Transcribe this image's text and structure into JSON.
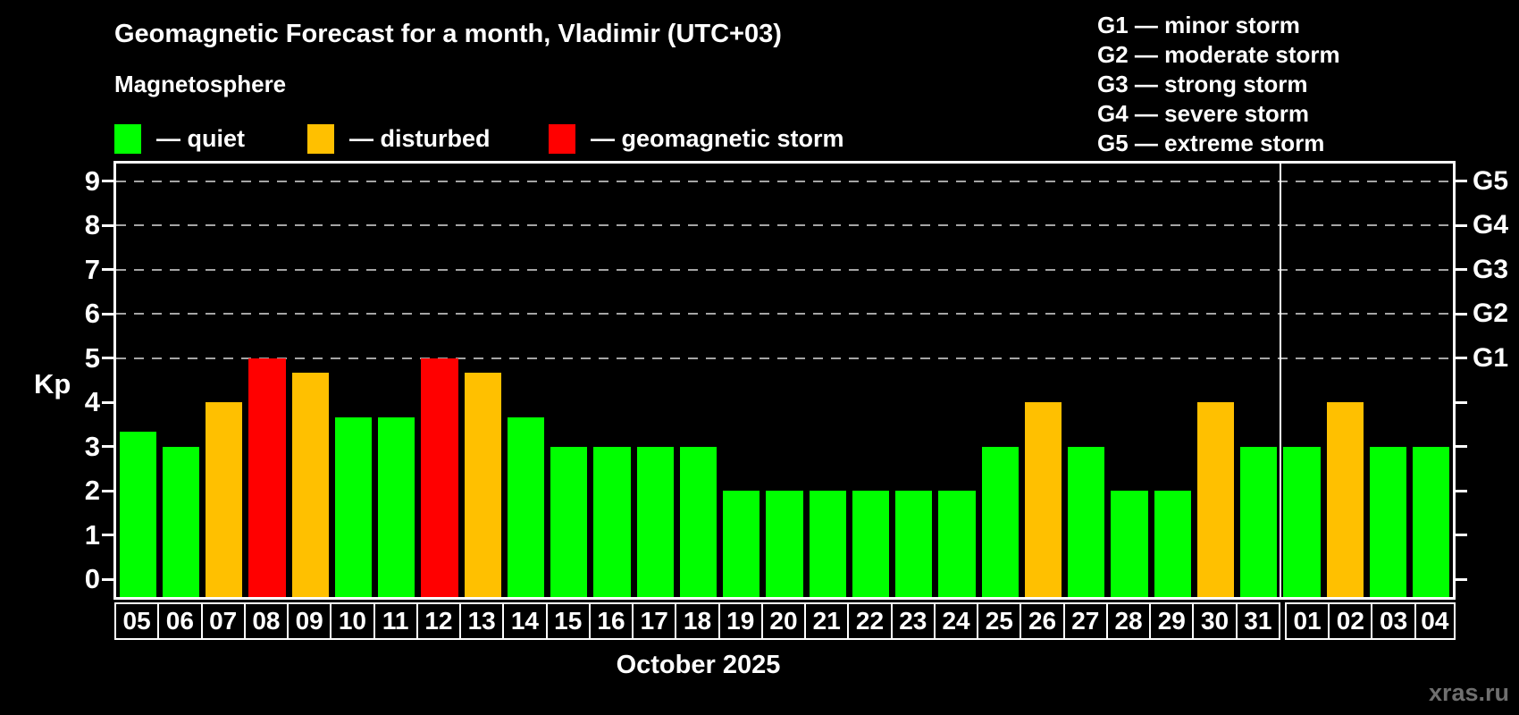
{
  "header": {
    "title": "Geomagnetic Forecast for a month, Vladimir (UTC+03)",
    "subtitle": "Magnetosphere",
    "legend": [
      {
        "label": "— quiet",
        "status": "quiet"
      },
      {
        "label": "— disturbed",
        "status": "disturbed"
      },
      {
        "label": "— geomagnetic storm",
        "status": "storm"
      }
    ],
    "g_legend": [
      "G1 — minor storm",
      "G2 — moderate storm",
      "G3 — strong storm",
      "G4 — severe storm",
      "G5 — extreme storm"
    ]
  },
  "colors": {
    "quiet": "#00ff00",
    "disturbed": "#ffc000",
    "storm": "#ff0000",
    "grid": "#a5a5a5",
    "axis": "#ffffff",
    "watermark": "#6f6f6f",
    "background": "#000000"
  },
  "chart_data": {
    "type": "bar",
    "title": "Geomagnetic Forecast for a month, Vladimir (UTC+03)",
    "ylabel": "Kp",
    "xlabel": "October 2025",
    "ylim": [
      0,
      9
    ],
    "yticks": [
      0,
      1,
      2,
      3,
      4,
      5,
      6,
      7,
      8,
      9
    ],
    "grid_levels": [
      5,
      6,
      7,
      8,
      9
    ],
    "right_axis_labels": [
      {
        "label": "G1",
        "kp": 5
      },
      {
        "label": "G2",
        "kp": 6
      },
      {
        "label": "G3",
        "kp": 7
      },
      {
        "label": "G4",
        "kp": 8
      },
      {
        "label": "G5",
        "kp": 9
      }
    ],
    "legend_position": "top",
    "grid": "dashed horizontal at storm levels only",
    "month_split_index": 27,
    "days": [
      {
        "label": "05",
        "value": 3.33,
        "status": "quiet"
      },
      {
        "label": "06",
        "value": 3.0,
        "status": "quiet"
      },
      {
        "label": "07",
        "value": 4.0,
        "status": "disturbed"
      },
      {
        "label": "08",
        "value": 5.0,
        "status": "storm"
      },
      {
        "label": "09",
        "value": 4.67,
        "status": "disturbed"
      },
      {
        "label": "10",
        "value": 3.67,
        "status": "quiet"
      },
      {
        "label": "11",
        "value": 3.67,
        "status": "quiet"
      },
      {
        "label": "12",
        "value": 5.0,
        "status": "storm"
      },
      {
        "label": "13",
        "value": 4.67,
        "status": "disturbed"
      },
      {
        "label": "14",
        "value": 3.67,
        "status": "quiet"
      },
      {
        "label": "15",
        "value": 3.0,
        "status": "quiet"
      },
      {
        "label": "16",
        "value": 3.0,
        "status": "quiet"
      },
      {
        "label": "17",
        "value": 3.0,
        "status": "quiet"
      },
      {
        "label": "18",
        "value": 3.0,
        "status": "quiet"
      },
      {
        "label": "19",
        "value": 2.0,
        "status": "quiet"
      },
      {
        "label": "20",
        "value": 2.0,
        "status": "quiet"
      },
      {
        "label": "21",
        "value": 2.0,
        "status": "quiet"
      },
      {
        "label": "22",
        "value": 2.0,
        "status": "quiet"
      },
      {
        "label": "23",
        "value": 2.0,
        "status": "quiet"
      },
      {
        "label": "24",
        "value": 2.0,
        "status": "quiet"
      },
      {
        "label": "25",
        "value": 3.0,
        "status": "quiet"
      },
      {
        "label": "26",
        "value": 4.0,
        "status": "disturbed"
      },
      {
        "label": "27",
        "value": 3.0,
        "status": "quiet"
      },
      {
        "label": "28",
        "value": 2.0,
        "status": "quiet"
      },
      {
        "label": "29",
        "value": 2.0,
        "status": "quiet"
      },
      {
        "label": "30",
        "value": 4.0,
        "status": "disturbed"
      },
      {
        "label": "31",
        "value": 3.0,
        "status": "quiet"
      },
      {
        "label": "01",
        "value": 3.0,
        "status": "quiet"
      },
      {
        "label": "02",
        "value": 4.0,
        "status": "disturbed"
      },
      {
        "label": "03",
        "value": 3.0,
        "status": "quiet"
      },
      {
        "label": "04",
        "value": 3.0,
        "status": "quiet"
      }
    ]
  },
  "watermark": "xras.ru"
}
